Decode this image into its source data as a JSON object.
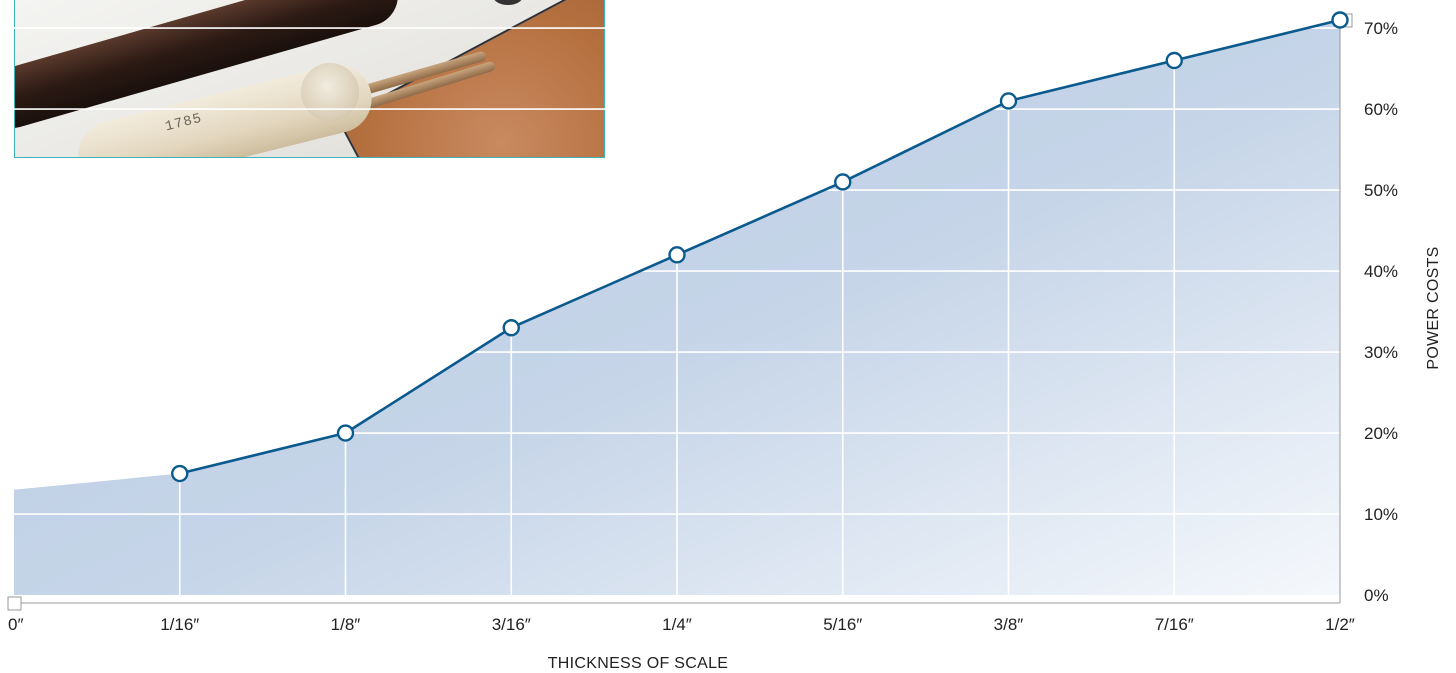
{
  "chart_data": {
    "type": "area",
    "x_categories": [
      "0″",
      "1/16″",
      "1/8″",
      "3/16″",
      "1/4″",
      "5/16″",
      "3/8″",
      "7/16″",
      "1/2″"
    ],
    "x_values_inches": [
      0,
      0.0625,
      0.125,
      0.1875,
      0.25,
      0.3125,
      0.375,
      0.4375,
      0.5
    ],
    "series": [
      {
        "values": [
          13,
          15,
          20,
          33,
          42,
          51,
          61,
          66,
          71
        ],
        "marked_points": [
          1,
          2,
          3,
          4,
          5,
          6,
          7,
          8
        ]
      }
    ],
    "y_ticks": [
      "0%",
      "10%",
      "20%",
      "30%",
      "40%",
      "50%",
      "60%",
      "70%"
    ],
    "y_tick_values": [
      0,
      10,
      20,
      30,
      40,
      50,
      60,
      70
    ],
    "ylim": [
      0,
      71
    ],
    "xlabel": "THICKNESS OF SCALE",
    "ylabel": "POWER COSTS",
    "y_axis_side": "right",
    "grid": true,
    "colors": {
      "line": "#0b5a8e",
      "fill_top": "#b5c8e1",
      "fill_bottom": "#f4f7fb",
      "grid": "#ffffff",
      "axis": "#999999",
      "marker_fill": "#ffffff"
    }
  },
  "photo": {
    "caption_text": "1785"
  }
}
